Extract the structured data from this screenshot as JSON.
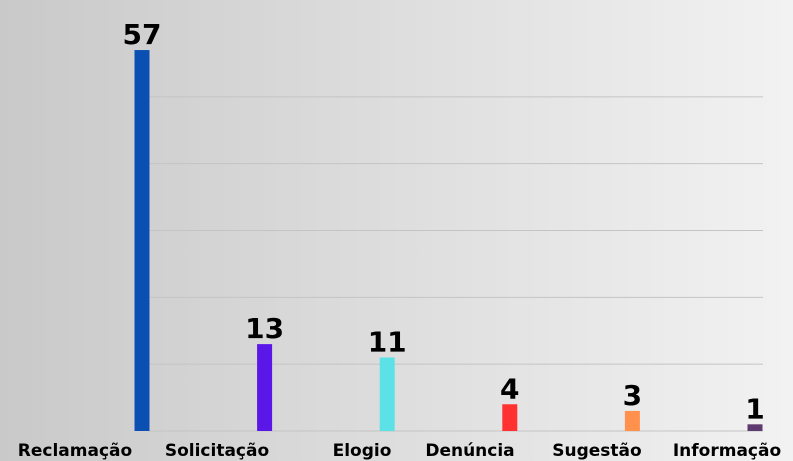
{
  "chart_data": {
    "type": "bar",
    "categories": [
      "Reclamação",
      "Solicitação",
      "Elogio",
      "Denúncia",
      "Sugestão",
      "Informação"
    ],
    "values": [
      57,
      13,
      11,
      4,
      3,
      1
    ],
    "colors": [
      "#0b4fb3",
      "#5b16e8",
      "#5ce1e6",
      "#ff3131",
      "#ff914d",
      "#5e3a6e"
    ],
    "ylim": [
      0,
      60
    ],
    "yticks": [
      0,
      10,
      20,
      30,
      40,
      50
    ],
    "grid": true
  }
}
